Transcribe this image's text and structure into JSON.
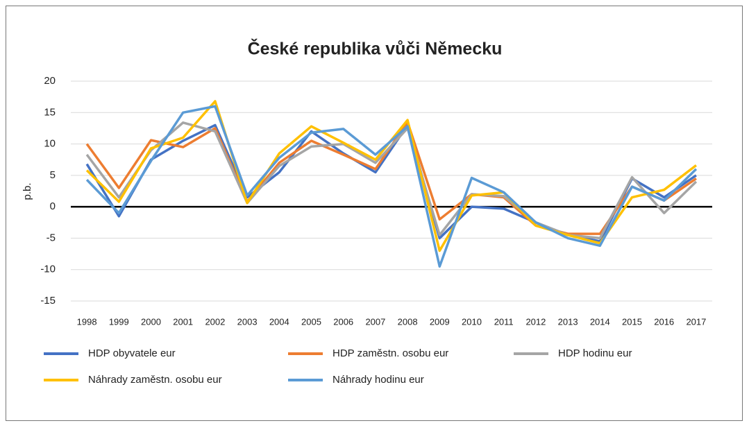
{
  "chart_data": {
    "type": "line",
    "title": "České republika vůči Německu",
    "y_label": "p.b.",
    "categories": [
      "1998",
      "1999",
      "2000",
      "2001",
      "2002",
      "2003",
      "2004",
      "2005",
      "2006",
      "2007",
      "2008",
      "2009",
      "2010",
      "2011",
      "2012",
      "2013",
      "2014",
      "2015",
      "2016",
      "2017"
    ],
    "series": [
      {
        "name": "HDP obyvatele eur",
        "color": "#4472c4",
        "values": [
          6.8,
          -1.5,
          7.5,
          10.5,
          13,
          1.5,
          5.5,
          12,
          8.5,
          5.5,
          13,
          -5,
          0,
          -0.3,
          -2.5,
          -4.5,
          -5.5,
          4.5,
          1.5,
          5
        ]
      },
      {
        "name": "HDP zaměstn. osobu eur",
        "color": "#ed7d31",
        "values": [
          10,
          3,
          10.6,
          9.5,
          12.5,
          0.8,
          7,
          10.5,
          8.3,
          6,
          13.5,
          -2,
          2,
          1.5,
          -3,
          -4.3,
          -4.3,
          3.2,
          1,
          4.5
        ]
      },
      {
        "name": "HDP hodinu eur",
        "color": "#a5a5a5",
        "values": [
          8.3,
          1.5,
          9,
          13.4,
          12,
          0.6,
          6.5,
          9.6,
          10,
          7,
          12.5,
          -4.5,
          2,
          1.7,
          -2.5,
          -4.5,
          -5,
          4.7,
          -1,
          4
        ]
      },
      {
        "name": "Náhrady zaměstn. osobu eur",
        "color": "#ffc000",
        "values": [
          5.8,
          0.8,
          9.3,
          11,
          16.8,
          0.6,
          8.5,
          12.8,
          10.2,
          7.5,
          13.8,
          -7,
          1.8,
          2.3,
          -3,
          -4.5,
          -5.8,
          1.5,
          2.7,
          6.6
        ]
      },
      {
        "name": "Náhrady hodinu eur",
        "color": "#5b9bd5",
        "values": [
          4.3,
          -1,
          7.3,
          15,
          16,
          1.8,
          7.8,
          11.8,
          12.4,
          8.3,
          12.8,
          -9.5,
          4.6,
          2.3,
          -2.5,
          -5,
          -6.2,
          3.2,
          1,
          6
        ]
      }
    ],
    "ylim": [
      -15,
      20
    ],
    "yticks": [
      -15,
      -10,
      -5,
      0,
      5,
      10,
      15,
      20
    ],
    "grid": true,
    "legend": "bottom"
  }
}
